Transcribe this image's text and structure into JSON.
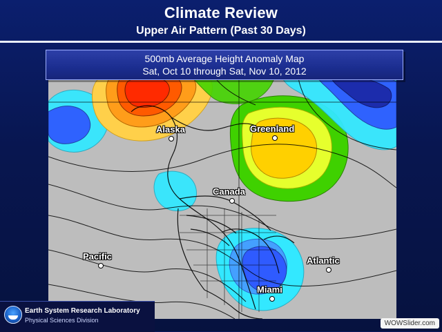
{
  "slide": {
    "title": "Climate Review",
    "subtitle": "Upper Air Pattern (Past 30 Days)"
  },
  "map_header": {
    "line1": "500mb Average Height Anomaly Map",
    "line2": "Sat, Oct 10 through Sat, Nov 10, 2012"
  },
  "map_labels": {
    "alaska": "Alaska",
    "greenland": "Greenland",
    "canada": "Canada",
    "pacific": "Pacific",
    "atlantic": "Atlantic",
    "miami": "Miami"
  },
  "logo": {
    "org": "Earth System Research Laboratory",
    "division": "Physical Sciences Division"
  },
  "watermark": {
    "text": "WOWSlider.com"
  },
  "colors": {
    "background": "#081650",
    "rule": "#e9eefc",
    "anomaly_positive_strong": "#ff3d00",
    "anomaly_positive_med": "#ffb300",
    "anomaly_positive_weak": "#f8ff39",
    "anomaly_neutral": "#bdbdbd",
    "anomaly_negative_weak": "#33e8ff",
    "anomaly_negative_med": "#2f5bff",
    "anomaly_negative_strong": "#1b2aa8"
  }
}
